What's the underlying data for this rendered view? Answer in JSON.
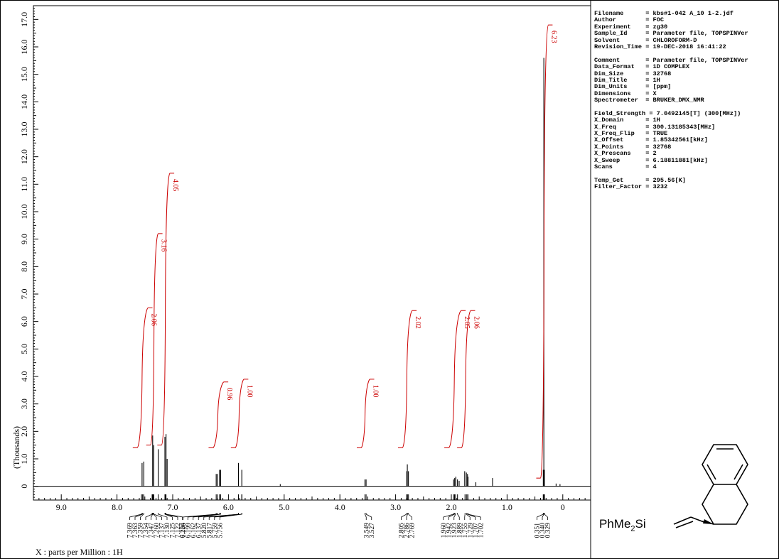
{
  "chart_data": {
    "type": "line",
    "title": "",
    "ylabel": "(Thousands)",
    "xlabel": "X : parts per Million : 1H",
    "xlim": [
      9.5,
      -0.5
    ],
    "ylim": [
      -0.5,
      17.5
    ],
    "x_ticks": [
      "9.0",
      "8.0",
      "7.0",
      "6.0",
      "5.0",
      "4.0",
      "3.0",
      "2.0",
      "1.0",
      "0"
    ],
    "y_ticks": [
      "0",
      "1.0",
      "2.0",
      "3.0",
      "4.0",
      "5.0",
      "6.0",
      "7.0",
      "8.0",
      "9.0",
      "10.0",
      "11.0",
      "12.0",
      "13.0",
      "14.0",
      "15.0",
      "16.0",
      "17.0"
    ],
    "peaks": [
      {
        "ppm": 7.52,
        "height": 0.9
      },
      {
        "ppm": 7.55,
        "height": 0.85
      },
      {
        "ppm": 7.36,
        "height": 1.85
      },
      {
        "ppm": 7.34,
        "height": 1.5
      },
      {
        "ppm": 7.26,
        "height": 1.35
      },
      {
        "ppm": 7.14,
        "height": 1.8
      },
      {
        "ppm": 7.12,
        "height": 1.9
      },
      {
        "ppm": 7.1,
        "height": 1.0
      },
      {
        "ppm": 6.22,
        "height": 0.45
      },
      {
        "ppm": 6.2,
        "height": 0.45
      },
      {
        "ppm": 6.16,
        "height": 0.6
      },
      {
        "ppm": 6.14,
        "height": 0.6
      },
      {
        "ppm": 5.82,
        "height": 0.85
      },
      {
        "ppm": 5.76,
        "height": 0.6
      },
      {
        "ppm": 5.07,
        "height": 0.08
      },
      {
        "ppm": 3.55,
        "height": 0.25
      },
      {
        "ppm": 3.53,
        "height": 0.25
      },
      {
        "ppm": 2.8,
        "height": 0.55
      },
      {
        "ppm": 2.79,
        "height": 0.8
      },
      {
        "ppm": 2.77,
        "height": 0.55
      },
      {
        "ppm": 1.96,
        "height": 0.25
      },
      {
        "ppm": 1.94,
        "height": 0.3
      },
      {
        "ppm": 1.92,
        "height": 0.35
      },
      {
        "ppm": 1.89,
        "height": 0.25
      },
      {
        "ppm": 1.86,
        "height": 0.2
      },
      {
        "ppm": 1.76,
        "height": 0.55
      },
      {
        "ppm": 1.73,
        "height": 0.5
      },
      {
        "ppm": 1.71,
        "height": 0.45
      },
      {
        "ppm": 1.7,
        "height": 0.35
      },
      {
        "ppm": 1.56,
        "height": 0.15
      },
      {
        "ppm": 1.26,
        "height": 0.3
      },
      {
        "ppm": 0.35,
        "height": 0.6
      },
      {
        "ppm": 0.34,
        "height": 15.6
      },
      {
        "ppm": 0.33,
        "height": 0.6
      },
      {
        "ppm": 0.12,
        "height": 0.1
      },
      {
        "ppm": 0.05,
        "height": 0.08
      }
    ],
    "integrals": [
      {
        "start": 7.64,
        "end": 7.44,
        "y0": 1.4,
        "y1": 6.5,
        "label": "2.06"
      },
      {
        "start": 7.4,
        "end": 7.26,
        "y0": 1.5,
        "y1": 9.2,
        "label": "3.16"
      },
      {
        "start": 7.2,
        "end": 7.05,
        "y0": 1.5,
        "y1": 11.4,
        "label": "4.05"
      },
      {
        "start": 6.28,
        "end": 6.08,
        "y0": 1.4,
        "y1": 3.8,
        "label": "0.96"
      },
      {
        "start": 5.88,
        "end": 5.72,
        "y0": 1.4,
        "y1": 3.9,
        "label": "1.00"
      },
      {
        "start": 3.62,
        "end": 3.46,
        "y0": 1.4,
        "y1": 3.9,
        "label": "1.00"
      },
      {
        "start": 2.88,
        "end": 2.7,
        "y0": 1.4,
        "y1": 6.4,
        "label": "2.02"
      },
      {
        "start": 2.05,
        "end": 1.82,
        "y0": 1.4,
        "y1": 6.4,
        "label": "2.05"
      },
      {
        "start": 1.82,
        "end": 1.65,
        "y0": 1.4,
        "y1": 6.4,
        "label": "2.06"
      },
      {
        "start": 0.4,
        "end": 0.26,
        "y0": 0.3,
        "y1": 16.8,
        "label": "6.23"
      }
    ],
    "peak_labels": [
      {
        "groups": [
          {
            "label_ppm_values": [
              "7.369",
              "7.363",
              "7.359",
              "7.354",
              "7.347",
              "7.260",
              "7.137",
              "7.130",
              "7.125",
              "7.122",
              "7.106"
            ],
            "peak_ppm": [
              7.56,
              7.54,
              7.52,
              7.37,
              7.36,
              7.35,
              7.34,
              7.26,
              7.14,
              7.13,
              7.12
            ]
          },
          {
            "label_ppm_values": [
              "6.224",
              "6.199",
              "6.162",
              "6.137",
              "5.820",
              "5.817",
              "5.759",
              "5.756"
            ],
            "peak_ppm": [
              6.22,
              6.2,
              6.16,
              6.14,
              5.82,
              5.82,
              5.76,
              5.76
            ]
          },
          {
            "label_ppm_values": [
              "3.549",
              "3.527"
            ],
            "peak_ppm": [
              3.55,
              3.53
            ]
          },
          {
            "label_ppm_values": [
              "2.805",
              "2.786",
              "2.769"
            ],
            "peak_ppm": [
              2.805,
              2.786,
              2.769
            ]
          },
          {
            "label_ppm_values": [
              "1.960",
              "1.942",
              "1.923",
              "1.889",
              "1.755",
              "1.729",
              "1.707",
              "1.702"
            ],
            "peak_ppm": [
              1.96,
              1.942,
              1.923,
              1.889,
              1.755,
              1.729,
              1.707,
              1.702
            ]
          },
          {
            "label_ppm_values": [
              "0.351",
              "0.340",
              "0.329"
            ],
            "peak_ppm": [
              0.351,
              0.34,
              0.329
            ]
          }
        ]
      }
    ],
    "colors": {
      "spectrum": "#000000",
      "integral": "#cc0000"
    }
  },
  "params": [
    "Filename      = kbs#1-042 A_10 1-2.jdf",
    "Author        = FOC",
    "Experiment    = zg30",
    "Sample_Id     = Parameter file, TOPSPINVer",
    "Solvent       = CHLOROFORM-D",
    "Revision_Time = 19-DEC-2018 16:41:22",
    "",
    "Comment       = Parameter file, TOPSPINVer",
    "Data_Format   = 1D COMPLEX",
    "Dim_Size      = 32768",
    "Dim_Title     = 1H",
    "Dim_Units     = [ppm]",
    "Dimensions    = X",
    "Spectrometer  = BRUKER_DMX_NMR",
    "",
    "Field_Strength = 7.0492145[T] (300[MHz])",
    "X_Domain      = 1H",
    "X_Freq        = 300.13185343[MHz]",
    "X_Freq_Flip   = TRUE",
    "X_Offset      = 1.85342561[kHz]",
    "X_Points      = 32768",
    "X_Prescans    = 2",
    "X_Sweep       = 6.18811881[kHz]",
    "Scans         = 4",
    "",
    "Temp_Get      = 295.56[K]",
    "Filter_Factor = 3232"
  ],
  "structure": {
    "label": "PhMe2Si"
  }
}
